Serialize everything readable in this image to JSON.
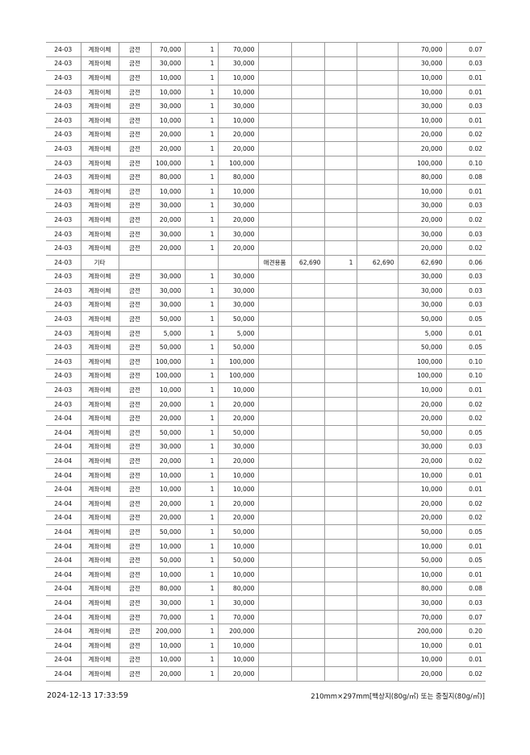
{
  "rows": [
    [
      "24-03",
      "계좌이체",
      "금전",
      "70,000",
      "1",
      "70,000",
      "",
      "",
      "",
      "",
      "70,000",
      "0.07"
    ],
    [
      "24-03",
      "계좌이체",
      "금전",
      "30,000",
      "1",
      "30,000",
      "",
      "",
      "",
      "",
      "30,000",
      "0.03"
    ],
    [
      "24-03",
      "계좌이체",
      "금전",
      "10,000",
      "1",
      "10,000",
      "",
      "",
      "",
      "",
      "10,000",
      "0.01"
    ],
    [
      "24-03",
      "계좌이체",
      "금전",
      "10,000",
      "1",
      "10,000",
      "",
      "",
      "",
      "",
      "10,000",
      "0.01"
    ],
    [
      "24-03",
      "계좌이체",
      "금전",
      "30,000",
      "1",
      "30,000",
      "",
      "",
      "",
      "",
      "30,000",
      "0.03"
    ],
    [
      "24-03",
      "계좌이체",
      "금전",
      "10,000",
      "1",
      "10,000",
      "",
      "",
      "",
      "",
      "10,000",
      "0.01"
    ],
    [
      "24-03",
      "계좌이체",
      "금전",
      "20,000",
      "1",
      "20,000",
      "",
      "",
      "",
      "",
      "20,000",
      "0.02"
    ],
    [
      "24-03",
      "계좌이체",
      "금전",
      "20,000",
      "1",
      "20,000",
      "",
      "",
      "",
      "",
      "20,000",
      "0.02"
    ],
    [
      "24-03",
      "계좌이체",
      "금전",
      "100,000",
      "1",
      "100,000",
      "",
      "",
      "",
      "",
      "100,000",
      "0.10"
    ],
    [
      "24-03",
      "계좌이체",
      "금전",
      "80,000",
      "1",
      "80,000",
      "",
      "",
      "",
      "",
      "80,000",
      "0.08"
    ],
    [
      "24-03",
      "계좌이체",
      "금전",
      "10,000",
      "1",
      "10,000",
      "",
      "",
      "",
      "",
      "10,000",
      "0.01"
    ],
    [
      "24-03",
      "계좌이체",
      "금전",
      "30,000",
      "1",
      "30,000",
      "",
      "",
      "",
      "",
      "30,000",
      "0.03"
    ],
    [
      "24-03",
      "계좌이체",
      "금전",
      "20,000",
      "1",
      "20,000",
      "",
      "",
      "",
      "",
      "20,000",
      "0.02"
    ],
    [
      "24-03",
      "계좌이체",
      "금전",
      "30,000",
      "1",
      "30,000",
      "",
      "",
      "",
      "",
      "30,000",
      "0.03"
    ],
    [
      "24-03",
      "계좌이체",
      "금전",
      "20,000",
      "1",
      "20,000",
      "",
      "",
      "",
      "",
      "20,000",
      "0.02"
    ],
    [
      "24-03",
      "기타",
      "",
      "",
      "",
      "",
      "애견용품",
      "62,690",
      "1",
      "62,690",
      "62,690",
      "0.06"
    ],
    [
      "24-03",
      "계좌이체",
      "금전",
      "30,000",
      "1",
      "30,000",
      "",
      "",
      "",
      "",
      "30,000",
      "0.03"
    ],
    [
      "24-03",
      "계좌이체",
      "금전",
      "30,000",
      "1",
      "30,000",
      "",
      "",
      "",
      "",
      "30,000",
      "0.03"
    ],
    [
      "24-03",
      "계좌이체",
      "금전",
      "30,000",
      "1",
      "30,000",
      "",
      "",
      "",
      "",
      "30,000",
      "0.03"
    ],
    [
      "24-03",
      "계좌이체",
      "금전",
      "50,000",
      "1",
      "50,000",
      "",
      "",
      "",
      "",
      "50,000",
      "0.05"
    ],
    [
      "24-03",
      "계좌이체",
      "금전",
      "5,000",
      "1",
      "5,000",
      "",
      "",
      "",
      "",
      "5,000",
      "0.01"
    ],
    [
      "24-03",
      "계좌이체",
      "금전",
      "50,000",
      "1",
      "50,000",
      "",
      "",
      "",
      "",
      "50,000",
      "0.05"
    ],
    [
      "24-03",
      "계좌이체",
      "금전",
      "100,000",
      "1",
      "100,000",
      "",
      "",
      "",
      "",
      "100,000",
      "0.10"
    ],
    [
      "24-03",
      "계좌이체",
      "금전",
      "100,000",
      "1",
      "100,000",
      "",
      "",
      "",
      "",
      "100,000",
      "0.10"
    ],
    [
      "24-03",
      "계좌이체",
      "금전",
      "10,000",
      "1",
      "10,000",
      "",
      "",
      "",
      "",
      "10,000",
      "0.01"
    ],
    [
      "24-03",
      "계좌이체",
      "금전",
      "20,000",
      "1",
      "20,000",
      "",
      "",
      "",
      "",
      "20,000",
      "0.02"
    ],
    [
      "24-04",
      "계좌이체",
      "금전",
      "20,000",
      "1",
      "20,000",
      "",
      "",
      "",
      "",
      "20,000",
      "0.02"
    ],
    [
      "24-04",
      "계좌이체",
      "금전",
      "50,000",
      "1",
      "50,000",
      "",
      "",
      "",
      "",
      "50,000",
      "0.05"
    ],
    [
      "24-04",
      "계좌이체",
      "금전",
      "30,000",
      "1",
      "30,000",
      "",
      "",
      "",
      "",
      "30,000",
      "0.03"
    ],
    [
      "24-04",
      "계좌이체",
      "금전",
      "20,000",
      "1",
      "20,000",
      "",
      "",
      "",
      "",
      "20,000",
      "0.02"
    ],
    [
      "24-04",
      "계좌이체",
      "금전",
      "10,000",
      "1",
      "10,000",
      "",
      "",
      "",
      "",
      "10,000",
      "0.01"
    ],
    [
      "24-04",
      "계좌이체",
      "금전",
      "10,000",
      "1",
      "10,000",
      "",
      "",
      "",
      "",
      "10,000",
      "0.01"
    ],
    [
      "24-04",
      "계좌이체",
      "금전",
      "20,000",
      "1",
      "20,000",
      "",
      "",
      "",
      "",
      "20,000",
      "0.02"
    ],
    [
      "24-04",
      "계좌이체",
      "금전",
      "20,000",
      "1",
      "20,000",
      "",
      "",
      "",
      "",
      "20,000",
      "0.02"
    ],
    [
      "24-04",
      "계좌이체",
      "금전",
      "50,000",
      "1",
      "50,000",
      "",
      "",
      "",
      "",
      "50,000",
      "0.05"
    ],
    [
      "24-04",
      "계좌이체",
      "금전",
      "10,000",
      "1",
      "10,000",
      "",
      "",
      "",
      "",
      "10,000",
      "0.01"
    ],
    [
      "24-04",
      "계좌이체",
      "금전",
      "50,000",
      "1",
      "50,000",
      "",
      "",
      "",
      "",
      "50,000",
      "0.05"
    ],
    [
      "24-04",
      "계좌이체",
      "금전",
      "10,000",
      "1",
      "10,000",
      "",
      "",
      "",
      "",
      "10,000",
      "0.01"
    ],
    [
      "24-04",
      "계좌이체",
      "금전",
      "80,000",
      "1",
      "80,000",
      "",
      "",
      "",
      "",
      "80,000",
      "0.08"
    ],
    [
      "24-04",
      "계좌이체",
      "금전",
      "30,000",
      "1",
      "30,000",
      "",
      "",
      "",
      "",
      "30,000",
      "0.03"
    ],
    [
      "24-04",
      "계좌이체",
      "금전",
      "70,000",
      "1",
      "70,000",
      "",
      "",
      "",
      "",
      "70,000",
      "0.07"
    ],
    [
      "24-04",
      "계좌이체",
      "금전",
      "200,000",
      "1",
      "200,000",
      "",
      "",
      "",
      "",
      "200,000",
      "0.20"
    ],
    [
      "24-04",
      "계좌이체",
      "금전",
      "10,000",
      "1",
      "10,000",
      "",
      "",
      "",
      "",
      "10,000",
      "0.01"
    ],
    [
      "24-04",
      "계좌이체",
      "금전",
      "10,000",
      "1",
      "10,000",
      "",
      "",
      "",
      "",
      "10,000",
      "0.01"
    ],
    [
      "24-04",
      "계좌이체",
      "금전",
      "20,000",
      "1",
      "20,000",
      "",
      "",
      "",
      "",
      "20,000",
      "0.02"
    ]
  ],
  "footer": {
    "timestamp": "2024-12-13 17:33:59",
    "paper_spec": "210mm×297mm[백상지(80g/㎡) 또는 중질지(80g/㎡)]"
  }
}
